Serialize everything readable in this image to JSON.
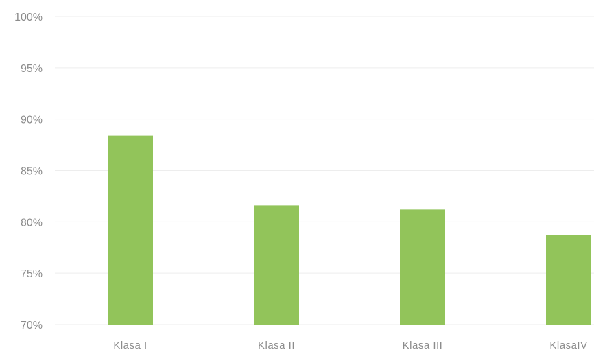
{
  "chart_data": {
    "type": "bar",
    "categories": [
      "Klasa I",
      "Klasa II",
      "Klasa III",
      "KlasaIV"
    ],
    "values": [
      88.4,
      81.6,
      81.2,
      78.7
    ],
    "ylim": [
      70,
      100
    ],
    "yticks": [
      70,
      75,
      80,
      85,
      90,
      95,
      100
    ],
    "ytick_labels": [
      "70%",
      "75%",
      "80%",
      "85%",
      "90%",
      "95%",
      "100%"
    ],
    "grid": true,
    "legend": "none",
    "colors": {
      "bar": "#92c45a",
      "gridline": "#ededed",
      "label": "#8c8c8c"
    }
  }
}
